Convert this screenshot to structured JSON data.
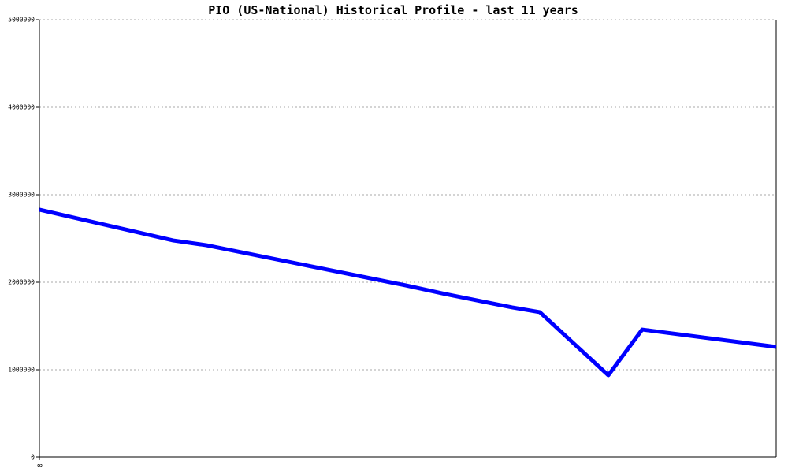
{
  "chart_data": {
    "type": "line",
    "title": "PIO (US-National) Historical Profile - last 11 years",
    "x": [
      0,
      170,
      212,
      425,
      465,
      515,
      600,
      635,
      722,
      765,
      935
    ],
    "series": [
      {
        "color": "#0000ff",
        "values": [
          2829000,
          2477000,
          2423000,
          2036000,
          1964000,
          1865000,
          1712000,
          1658000,
          937000,
          1459000,
          1261000
        ]
      }
    ],
    "xlim": [
      0,
      935
    ],
    "xticks": [
      0
    ],
    "ylim": [
      0,
      5000000
    ],
    "yticks": [
      0,
      1000000,
      2000000,
      3000000,
      4000000,
      5000000
    ],
    "grid": true
  }
}
